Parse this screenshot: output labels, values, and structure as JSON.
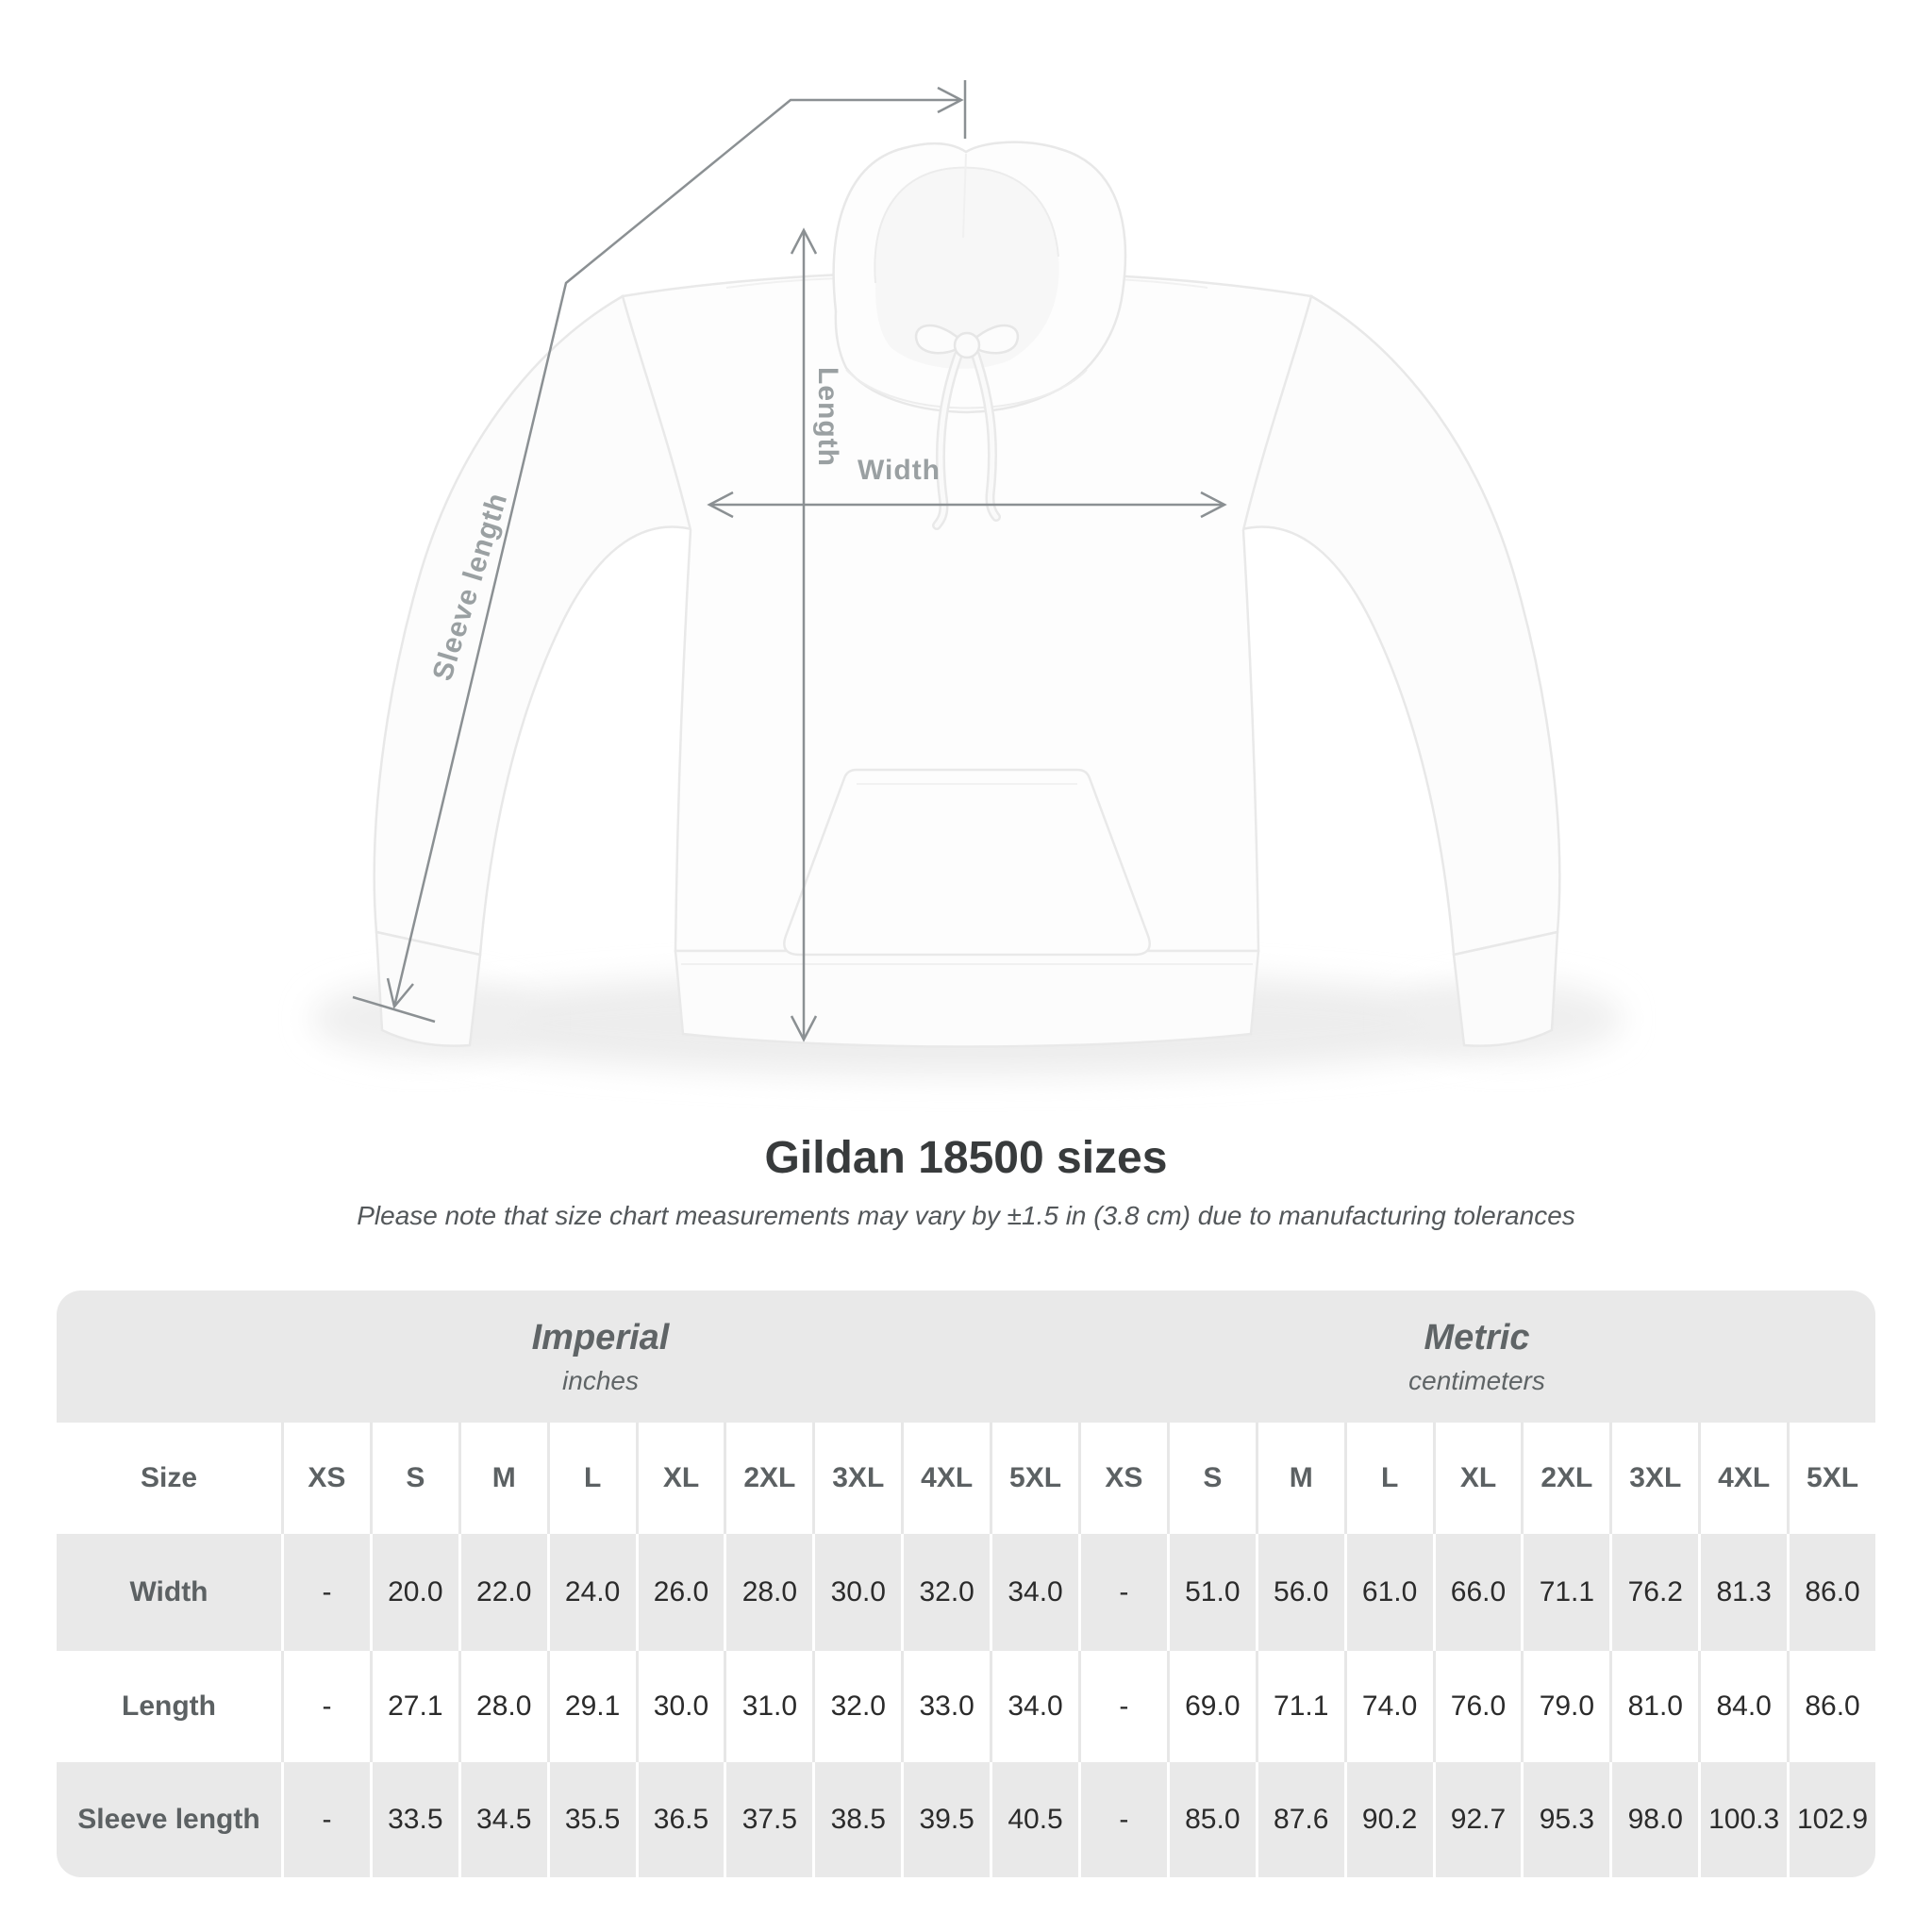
{
  "diagram": {
    "width_label": "Width",
    "length_label": "Length",
    "sleeve_label": "Sleeve length"
  },
  "heading": {
    "title": "Gildan 18500 sizes",
    "subtitle": "Please note that size chart measurements may vary by ±1.5 in (3.8 cm) due to manufacturing tolerances"
  },
  "table": {
    "corner_label": "Size",
    "groups": [
      {
        "label": "Imperial",
        "unit": "inches"
      },
      {
        "label": "Metric",
        "unit": "centimeters"
      }
    ],
    "sizes": [
      "XS",
      "S",
      "M",
      "L",
      "XL",
      "2XL",
      "3XL",
      "4XL",
      "5XL"
    ],
    "rows": [
      {
        "label": "Width",
        "values": [
          "-",
          "20.0",
          "22.0",
          "24.0",
          "26.0",
          "28.0",
          "30.0",
          "32.0",
          "34.0",
          "-",
          "51.0",
          "56.0",
          "61.0",
          "66.0",
          "71.1",
          "76.2",
          "81.3",
          "86.0"
        ]
      },
      {
        "label": "Length",
        "values": [
          "-",
          "27.1",
          "28.0",
          "29.1",
          "30.0",
          "31.0",
          "32.0",
          "33.0",
          "34.0",
          "-",
          "69.0",
          "71.1",
          "74.0",
          "76.0",
          "79.0",
          "81.0",
          "84.0",
          "86.0"
        ]
      },
      {
        "label": "Sleeve length",
        "values": [
          "-",
          "33.5",
          "34.5",
          "35.5",
          "36.5",
          "37.5",
          "38.5",
          "39.5",
          "40.5",
          "-",
          "85.0",
          "87.6",
          "90.2",
          "92.7",
          "95.3",
          "98.0",
          "100.3",
          "102.9"
        ]
      }
    ]
  },
  "colors": {
    "table_band_gray": "#e9e9e9",
    "annotation_line": "#8b9093",
    "annotation_label": "#9aa0a2",
    "header_text": "#5c6163",
    "value_text": "#2b2b2b",
    "title_text": "#383b3c"
  }
}
